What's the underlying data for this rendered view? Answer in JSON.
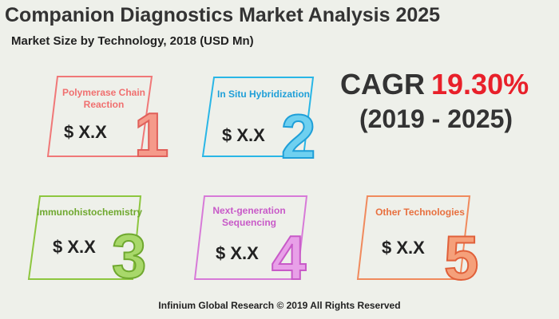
{
  "header": {
    "title": "Companion Diagnostics Market Analysis 2025",
    "subtitle": "Market Size by Technology, 2018 (USD Mn)"
  },
  "cagr": {
    "label": "CAGR",
    "value": "19.30%",
    "period": "(2019 - 2025)"
  },
  "items": [
    {
      "label": [
        "Polymerase Chain",
        "Reaction"
      ],
      "value": "$ X.X",
      "number": "1"
    },
    {
      "label": [
        "In Situ Hybridization"
      ],
      "value": "$ X.X",
      "number": "2"
    },
    {
      "label": [
        "Immunohistochemistry"
      ],
      "value": "$ X.X",
      "number": "3"
    },
    {
      "label": [
        "Next-generation",
        "Sequencing"
      ],
      "value": "$ X.X",
      "number": "4"
    },
    {
      "label": [
        "Other Technologies"
      ],
      "value": "$ X.X",
      "number": "5"
    }
  ],
  "footer": "Infinium Global Research © 2019 All Rights Reserved"
}
